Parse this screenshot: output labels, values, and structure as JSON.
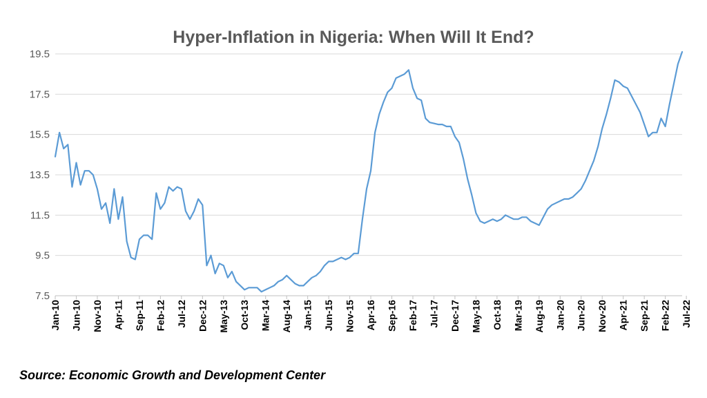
{
  "chart_data": {
    "type": "line",
    "title": "Hyper-Inflation in Nigeria: When Will It End?",
    "source": "Source: Economic Growth and Development Center",
    "xlabel": "",
    "ylabel": "",
    "ylim": [
      7.5,
      19.5
    ],
    "ytick_labels": [
      "7.5",
      "9.5",
      "11.5",
      "13.5",
      "15.5",
      "17.5",
      "19.5"
    ],
    "gridlines": true,
    "line_color": "#5B9BD5",
    "x_start": "Jan-10",
    "x_tick_labels": [
      "Jan-10",
      "Jun-10",
      "Nov-10",
      "Apr-11",
      "Sep-11",
      "Feb-12",
      "Jul-12",
      "Dec-12",
      "May-13",
      "Oct-13",
      "Mar-14",
      "Aug-14",
      "Jan-15",
      "Jun-15",
      "Nov-15",
      "Apr-16",
      "Sep-16",
      "Feb-17",
      "Jul-17",
      "Dec-17",
      "May-18",
      "Oct-18",
      "Mar-19",
      "Aug-19",
      "Jan-20",
      "Jun-20",
      "Nov-20",
      "Apr-21",
      "Sep-21",
      "Feb-22",
      "Jul-22"
    ],
    "series": [
      {
        "values": [
          14.4,
          15.6,
          14.8,
          15.0,
          12.9,
          14.1,
          13.0,
          13.7,
          13.7,
          13.5,
          12.8,
          11.8,
          12.1,
          11.1,
          12.8,
          11.3,
          12.4,
          10.2,
          9.4,
          9.3,
          10.3,
          10.5,
          10.5,
          10.3,
          12.6,
          11.8,
          12.1,
          12.9,
          12.7,
          12.9,
          12.8,
          11.7,
          11.3,
          11.7,
          12.3,
          12.0,
          9.0,
          9.5,
          8.6,
          9.1,
          9.0,
          8.4,
          8.7,
          8.2,
          8.0,
          7.8,
          7.9,
          7.9,
          7.9,
          7.7,
          7.8,
          7.9,
          8.0,
          8.2,
          8.3,
          8.5,
          8.3,
          8.1,
          8.0,
          8.0,
          8.2,
          8.4,
          8.5,
          8.7,
          9.0,
          9.2,
          9.2,
          9.3,
          9.4,
          9.3,
          9.4,
          9.6,
          9.6,
          11.3,
          12.8,
          13.7,
          15.6,
          16.5,
          17.1,
          17.6,
          17.8,
          18.3,
          18.4,
          18.5,
          18.7,
          17.8,
          17.3,
          17.2,
          16.3,
          16.1,
          16.05,
          16.0,
          16.0,
          15.9,
          15.9,
          15.4,
          15.1,
          14.3,
          13.3,
          12.5,
          11.6,
          11.2,
          11.1,
          11.2,
          11.3,
          11.2,
          11.3,
          11.5,
          11.4,
          11.3,
          11.3,
          11.4,
          11.4,
          11.2,
          11.1,
          11.0,
          11.4,
          11.8,
          12.0,
          12.1,
          12.2,
          12.3,
          12.3,
          12.4,
          12.6,
          12.8,
          13.2,
          13.7,
          14.2,
          14.9,
          15.8,
          16.5,
          17.3,
          18.2,
          18.1,
          17.9,
          17.8,
          17.4,
          17.0,
          16.6,
          16.0,
          15.4,
          15.6,
          15.6,
          16.3,
          15.9,
          17.0,
          18.0,
          19.0,
          19.6
        ]
      }
    ]
  }
}
